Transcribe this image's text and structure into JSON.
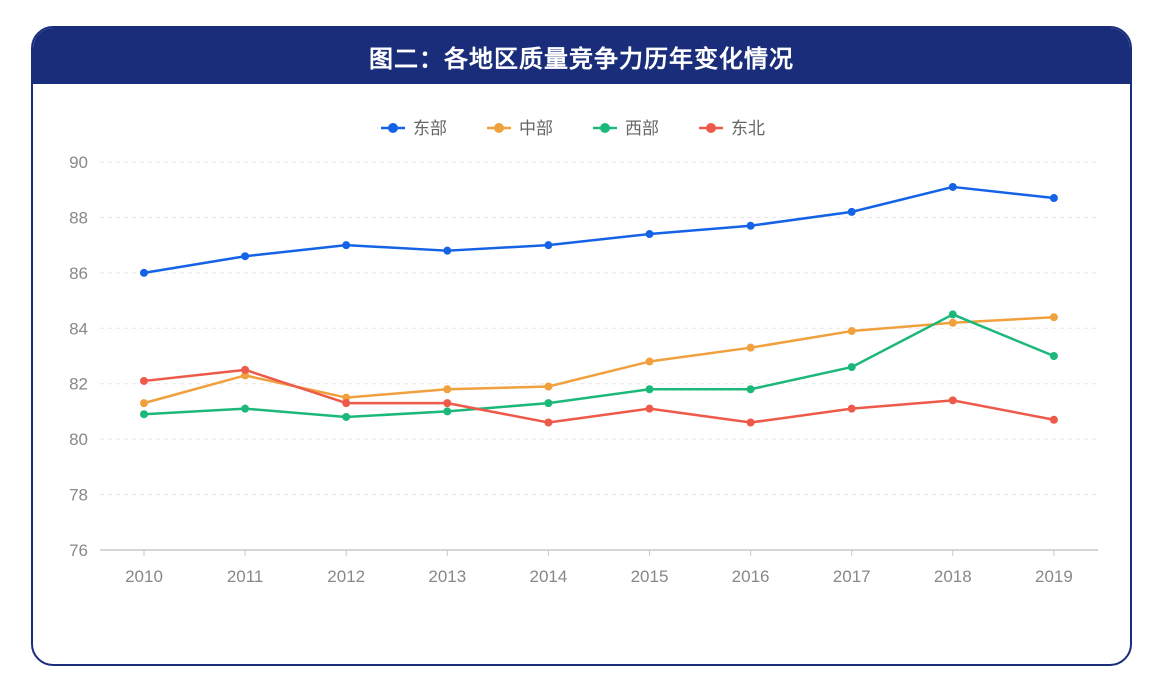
{
  "header": {
    "title": "图二：各地区质量竞争力历年变化情况"
  },
  "chart_data": {
    "type": "line",
    "title": "图二：各地区质量竞争力历年变化情况",
    "x": [
      "2010",
      "2011",
      "2012",
      "2013",
      "2014",
      "2015",
      "2016",
      "2017",
      "2018",
      "2019"
    ],
    "ylim": [
      76,
      90
    ],
    "yticks": [
      76,
      78,
      80,
      82,
      84,
      86,
      88,
      90
    ],
    "grid": true,
    "legend": "top-center",
    "series": [
      {
        "name": "东部",
        "color": "#1463e6",
        "values": [
          86.0,
          86.6,
          87.0,
          86.8,
          87.0,
          87.4,
          87.7,
          88.2,
          89.1,
          88.7
        ]
      },
      {
        "name": "中部",
        "color": "#f0a03c",
        "values": [
          81.3,
          82.3,
          81.5,
          81.8,
          81.9,
          82.8,
          83.3,
          83.9,
          84.2,
          84.4
        ]
      },
      {
        "name": "西部",
        "color": "#1cb87a",
        "values": [
          80.9,
          81.1,
          80.8,
          81.0,
          81.3,
          81.8,
          81.8,
          82.6,
          84.5,
          83.0
        ]
      },
      {
        "name": "东北",
        "color": "#ee5a4a",
        "values": [
          82.1,
          82.5,
          81.3,
          81.3,
          80.6,
          81.1,
          80.6,
          81.1,
          81.4,
          80.7
        ]
      }
    ]
  }
}
